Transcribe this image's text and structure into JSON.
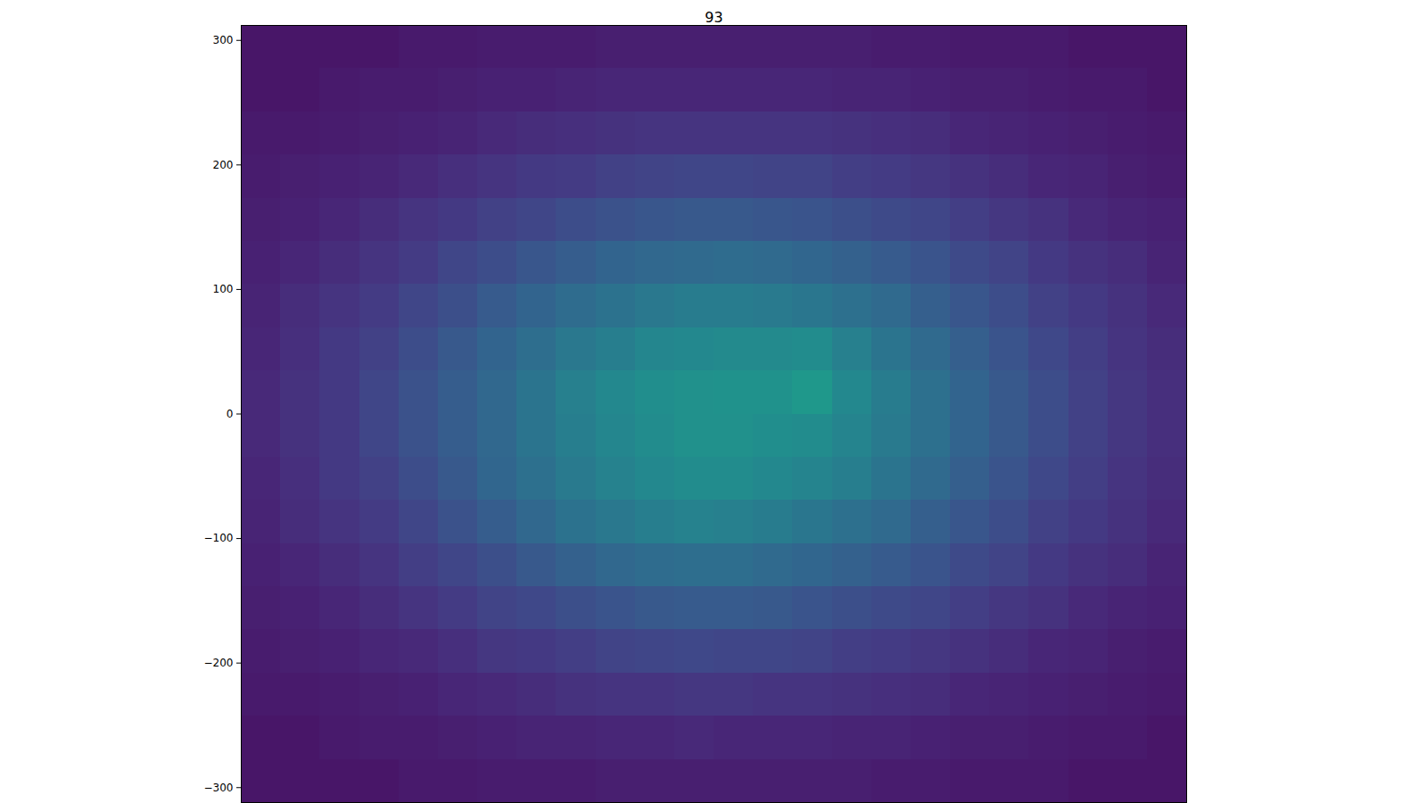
{
  "chart_data": {
    "type": "heatmap",
    "title": "93",
    "xlim": [
      -378,
      378
    ],
    "ylim": [
      -312,
      312
    ],
    "yticks": [
      -300,
      -200,
      -100,
      0,
      100,
      200,
      300
    ],
    "tick_labels": "y",
    "color": "viridis",
    "color_range": [
      0,
      12
    ],
    "x_edges": [
      -378,
      -346.5,
      -315,
      -283.5,
      -252,
      -220.5,
      -189,
      -157.5,
      -126,
      -94.5,
      -63,
      -31.5,
      0,
      31.5,
      63,
      94.5,
      126,
      157.5,
      189,
      220.5,
      252,
      283.5,
      315,
      346.5,
      378
    ],
    "y_edges": [
      -312,
      -277.3,
      -242.7,
      -208,
      -173.3,
      -138.7,
      -104,
      -69.3,
      -34.7,
      0,
      34.7,
      69.3,
      104,
      138.7,
      173.3,
      208,
      242.7,
      277.3,
      312
    ],
    "cells": [
      [
        0.7,
        0.7,
        0.7,
        0.7,
        0.8,
        0.8,
        0.9,
        0.9,
        0.9,
        1.0,
        1.0,
        1.0,
        1.0,
        1.0,
        1.0,
        1.0,
        0.9,
        0.9,
        0.8,
        0.8,
        0.8,
        0.7,
        0.7,
        0.7
      ],
      [
        0.7,
        0.7,
        0.8,
        0.9,
        0.9,
        1.0,
        1.1,
        1.2,
        1.2,
        1.3,
        1.3,
        1.4,
        1.3,
        1.3,
        1.3,
        1.2,
        1.2,
        1.1,
        1.0,
        1.0,
        0.9,
        0.8,
        0.8,
        0.7
      ],
      [
        0.8,
        0.8,
        0.9,
        1.0,
        1.1,
        1.3,
        1.4,
        1.5,
        1.7,
        1.8,
        1.8,
        1.9,
        1.9,
        1.8,
        1.8,
        1.7,
        1.6,
        1.5,
        1.3,
        1.2,
        1.1,
        1.0,
        0.9,
        0.8
      ],
      [
        0.9,
        1.0,
        1.1,
        1.3,
        1.4,
        1.6,
        1.9,
        2.0,
        2.2,
        2.4,
        2.5,
        2.6,
        2.5,
        2.5,
        2.4,
        2.2,
        2.1,
        1.9,
        1.7,
        1.5,
        1.3,
        1.2,
        1.0,
        0.9
      ],
      [
        1.0,
        1.1,
        1.3,
        1.5,
        1.8,
        2.1,
        2.4,
        2.6,
        2.9,
        3.1,
        3.3,
        3.4,
        3.4,
        3.3,
        3.1,
        2.9,
        2.7,
        2.5,
        2.2,
        1.9,
        1.7,
        1.4,
        1.2,
        1.1
      ],
      [
        1.1,
        1.3,
        1.5,
        1.8,
        2.2,
        2.5,
        2.9,
        3.3,
        3.7,
        4.0,
        4.2,
        4.3,
        4.3,
        4.1,
        3.9,
        3.7,
        3.4,
        3.1,
        2.7,
        2.4,
        2.0,
        1.7,
        1.5,
        1.2
      ],
      [
        1.2,
        1.5,
        1.8,
        2.1,
        2.5,
        3.0,
        3.5,
        4.0,
        4.5,
        4.8,
        5.1,
        5.3,
        5.2,
        5.0,
        4.7,
        4.4,
        4.1,
        3.6,
        3.2,
        2.8,
        2.3,
        2.0,
        1.7,
        1.4
      ],
      [
        1.3,
        1.6,
        2.0,
        2.3,
        2.8,
        3.3,
        3.9,
        4.4,
        4.9,
        5.3,
        5.6,
        5.8,
        5.8,
        5.6,
        5.4,
        5.1,
        4.6,
        4.1,
        3.6,
        3.1,
        2.6,
        2.2,
        1.8,
        1.5
      ],
      [
        1.4,
        1.7,
        2.0,
        2.5,
        3.0,
        3.5,
        4.0,
        4.6,
        5.1,
        5.5,
        5.8,
        6.0,
        6.0,
        5.9,
        5.8,
        5.4,
        4.9,
        4.4,
        3.8,
        3.3,
        2.8,
        2.3,
        1.9,
        1.6
      ],
      [
        1.4,
        1.7,
        2.0,
        2.5,
        3.0,
        3.5,
        4.0,
        4.6,
        5.2,
        5.6,
        5.9,
        6.0,
        6.1,
        6.1,
        6.4,
        5.6,
        5.0,
        4.4,
        3.8,
        3.3,
        2.8,
        2.3,
        1.9,
        1.6
      ],
      [
        1.3,
        1.6,
        2.0,
        2.3,
        2.8,
        3.3,
        3.8,
        4.3,
        4.8,
        5.1,
        5.5,
        5.6,
        5.7,
        5.7,
        5.8,
        5.2,
        4.6,
        4.1,
        3.6,
        3.1,
        2.6,
        2.2,
        1.8,
        1.5
      ],
      [
        1.2,
        1.5,
        1.8,
        2.1,
        2.5,
        2.9,
        3.4,
        3.8,
        4.2,
        4.5,
        4.8,
        5.0,
        5.0,
        4.9,
        4.7,
        4.4,
        4.1,
        3.6,
        3.2,
        2.8,
        2.3,
        2.0,
        1.7,
        1.4
      ],
      [
        1.1,
        1.3,
        1.5,
        1.8,
        2.1,
        2.5,
        2.8,
        3.2,
        3.5,
        3.8,
        4.0,
        4.1,
        4.2,
        4.1,
        3.9,
        3.7,
        3.4,
        3.1,
        2.7,
        2.4,
        2.0,
        1.7,
        1.5,
        1.2
      ],
      [
        1.0,
        1.1,
        1.3,
        1.5,
        1.8,
        2.0,
        2.3,
        2.5,
        2.8,
        3.0,
        3.2,
        3.3,
        3.3,
        3.2,
        3.1,
        2.9,
        2.7,
        2.5,
        2.2,
        1.9,
        1.7,
        1.4,
        1.2,
        1.1
      ],
      [
        0.9,
        1.0,
        1.1,
        1.2,
        1.4,
        1.6,
        1.8,
        2.0,
        2.1,
        2.3,
        2.4,
        2.5,
        2.5,
        2.4,
        2.4,
        2.2,
        2.1,
        1.9,
        1.7,
        1.5,
        1.3,
        1.2,
        1.0,
        0.9
      ],
      [
        0.8,
        0.8,
        0.9,
        1.0,
        1.1,
        1.2,
        1.4,
        1.5,
        1.6,
        1.7,
        1.8,
        1.8,
        1.8,
        1.8,
        1.8,
        1.7,
        1.6,
        1.5,
        1.3,
        1.2,
        1.1,
        1.0,
        0.9,
        0.8
      ],
      [
        0.7,
        0.7,
        0.8,
        0.9,
        0.9,
        1.0,
        1.1,
        1.1,
        1.2,
        1.3,
        1.3,
        1.3,
        1.3,
        1.3,
        1.3,
        1.2,
        1.2,
        1.1,
        1.0,
        1.0,
        0.9,
        0.8,
        0.8,
        0.7
      ],
      [
        0.7,
        0.7,
        0.7,
        0.7,
        0.8,
        0.8,
        0.9,
        0.9,
        0.9,
        1.0,
        1.0,
        1.0,
        1.0,
        1.0,
        1.0,
        1.0,
        0.9,
        0.9,
        0.8,
        0.8,
        0.8,
        0.7,
        0.7,
        0.7
      ]
    ]
  }
}
